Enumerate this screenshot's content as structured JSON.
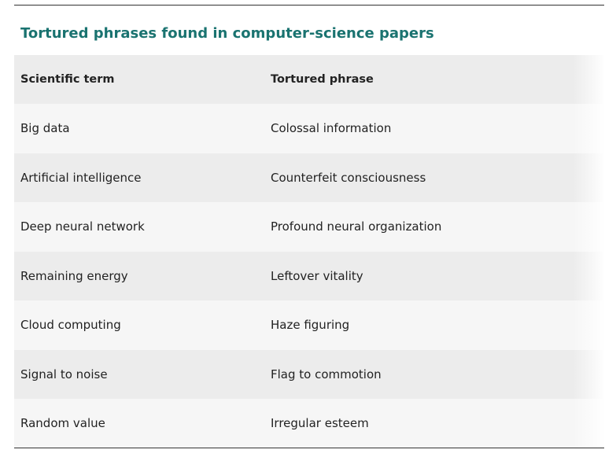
{
  "title": "Tortured phrases found in computer-science papers",
  "colors": {
    "title": "#1a7370",
    "text": "#222222",
    "header_bg": "#ececec",
    "row_light": "#f6f6f6",
    "row_dark": "#ececec",
    "rule": "#333333"
  },
  "table": {
    "headers": [
      "Scientific term",
      "Tortured phrase"
    ],
    "rows": [
      [
        "Big data",
        "Colossal information"
      ],
      [
        "Artificial intelligence",
        "Counterfeit consciousness"
      ],
      [
        "Deep neural network",
        "Profound neural organization"
      ],
      [
        "Remaining energy",
        "Leftover vitality"
      ],
      [
        "Cloud computing",
        "Haze figuring"
      ],
      [
        "Signal to noise",
        "Flag to commotion"
      ],
      [
        "Random value",
        "Irregular esteem"
      ]
    ]
  }
}
